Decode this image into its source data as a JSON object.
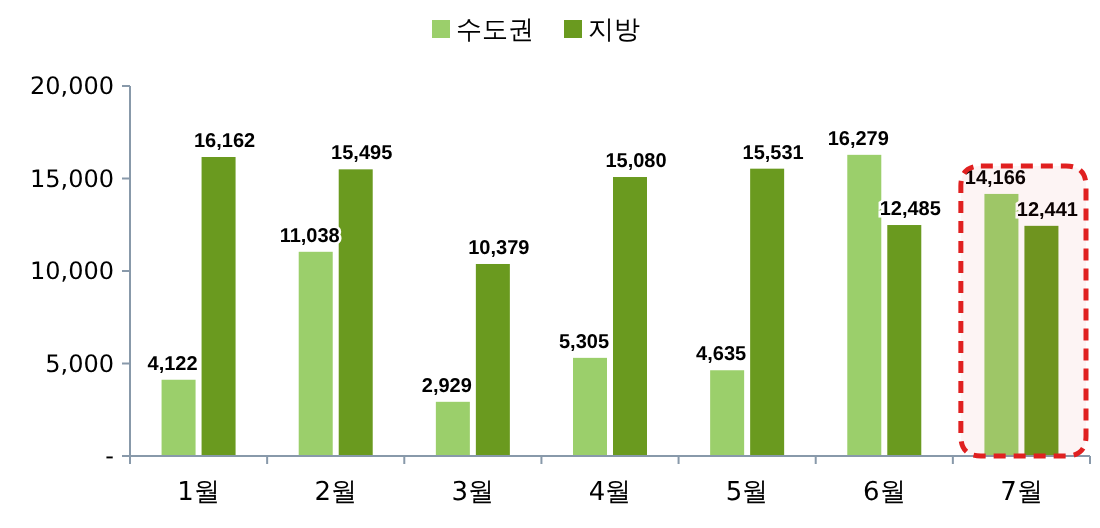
{
  "chart_data": {
    "type": "bar",
    "categories": [
      "1월",
      "2월",
      "3월",
      "4월",
      "5월",
      "6월",
      "7월"
    ],
    "series": [
      {
        "name": "수도권",
        "color": "#9bcf6b",
        "values": [
          4122,
          11038,
          2929,
          5305,
          4635,
          16279,
          14166
        ],
        "value_labels": [
          "4,122",
          "11,038",
          "2,929",
          "5,305",
          "4,635",
          "16,279",
          "14,166"
        ]
      },
      {
        "name": "지방",
        "color": "#6a9a1f",
        "values": [
          16162,
          15495,
          10379,
          15080,
          15531,
          12485,
          12441
        ],
        "value_labels": [
          "16,162",
          "15,495",
          "10,379",
          "15,080",
          "15,531",
          "12,485",
          "12,441"
        ]
      }
    ],
    "ylim": [
      0,
      20000
    ],
    "yticks": [
      {
        "value": 0,
        "label": "-"
      },
      {
        "value": 5000,
        "label": "5,000"
      },
      {
        "value": 10000,
        "label": "10,000"
      },
      {
        "value": 15000,
        "label": "15,000"
      },
      {
        "value": 20000,
        "label": "20,000"
      }
    ],
    "legend": "top",
    "grid": false,
    "bands": [
      {
        "axis": "x",
        "from": "7월",
        "to": "7월",
        "color": "#e02020"
      }
    ]
  }
}
